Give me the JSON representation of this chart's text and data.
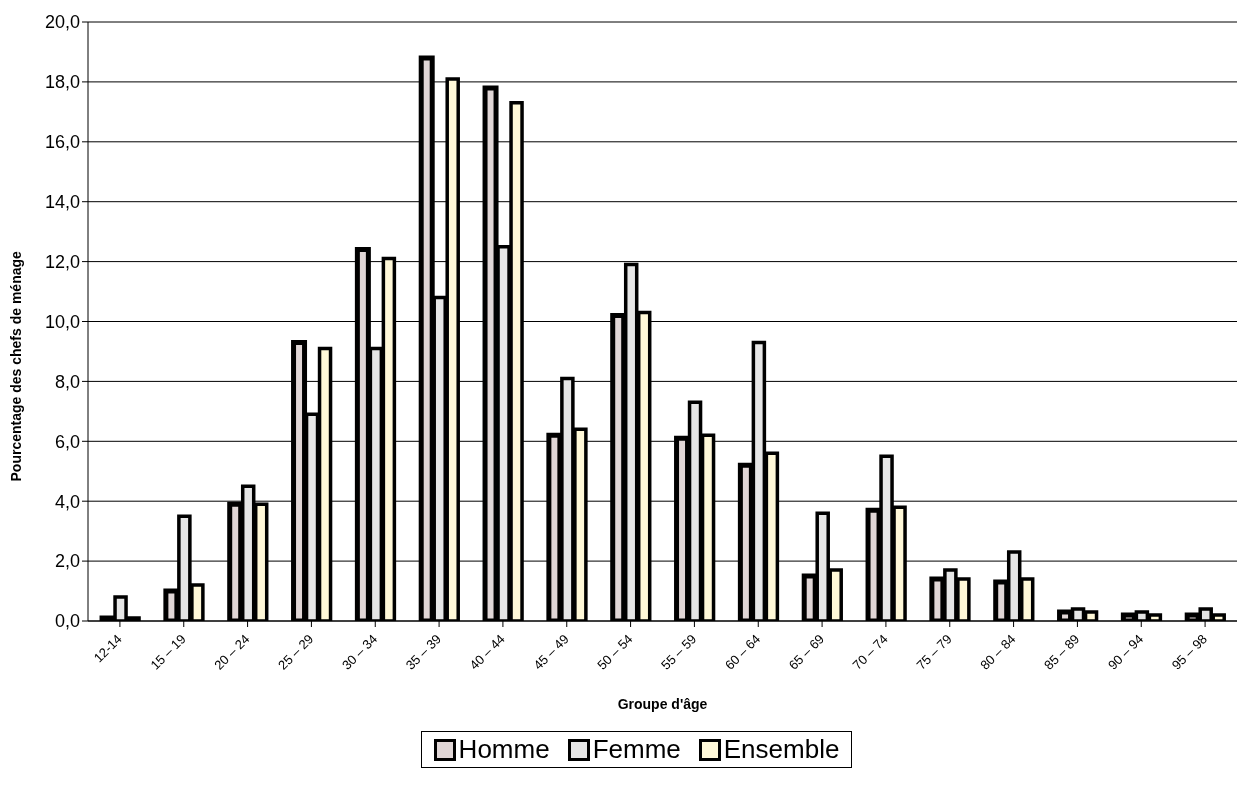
{
  "chart_data": {
    "type": "bar",
    "xlabel": "Groupe d'âge",
    "ylabel": "Pourcentage des chefs de ménage",
    "categories": [
      "12-14",
      "15 – 19",
      "20 – 24",
      "25 – 29",
      "30 – 34",
      "35 – 39",
      "40 – 44",
      "45 – 49",
      "50 – 54",
      "55 – 59",
      "60 – 64",
      "65 – 69",
      "70 – 74",
      "75 – 79",
      "80 – 84",
      "85 – 89",
      "90 – 94",
      "95 – 98"
    ],
    "series": [
      {
        "name": "Homme",
        "color": "#e0d6d6",
        "values": [
          0.1,
          1.0,
          3.9,
          9.3,
          12.4,
          18.8,
          17.8,
          6.2,
          10.2,
          6.1,
          5.2,
          1.5,
          3.7,
          1.4,
          1.3,
          0.3,
          0.2,
          0.2
        ]
      },
      {
        "name": "Femme",
        "color": "#e6e6e6",
        "values": [
          0.8,
          3.5,
          4.5,
          6.9,
          9.1,
          10.8,
          12.5,
          8.1,
          11.9,
          7.3,
          9.3,
          3.6,
          5.5,
          1.7,
          2.3,
          0.4,
          0.3,
          0.4
        ]
      },
      {
        "name": "Ensemble",
        "color": "#fff8d8",
        "values": [
          0.1,
          1.2,
          3.9,
          9.1,
          12.1,
          18.1,
          17.3,
          6.4,
          10.3,
          6.2,
          5.6,
          1.7,
          3.8,
          1.4,
          1.4,
          0.3,
          0.2,
          0.2
        ]
      }
    ],
    "ylim": [
      0,
      20
    ],
    "yticks": [
      {
        "value": 0,
        "label": "0,0"
      },
      {
        "value": 2,
        "label": "2,0"
      },
      {
        "value": 4,
        "label": "4,0"
      },
      {
        "value": 6,
        "label": "6,0"
      },
      {
        "value": 8,
        "label": "8,0"
      },
      {
        "value": 10,
        "label": "10,0"
      },
      {
        "value": 12,
        "label": "12,0"
      },
      {
        "value": 14,
        "label": "14,0"
      },
      {
        "value": 16,
        "label": "16,0"
      },
      {
        "value": 18,
        "label": "18,0"
      },
      {
        "value": 20,
        "label": "20,0"
      }
    ],
    "grid": "y",
    "legend": "bottom"
  }
}
